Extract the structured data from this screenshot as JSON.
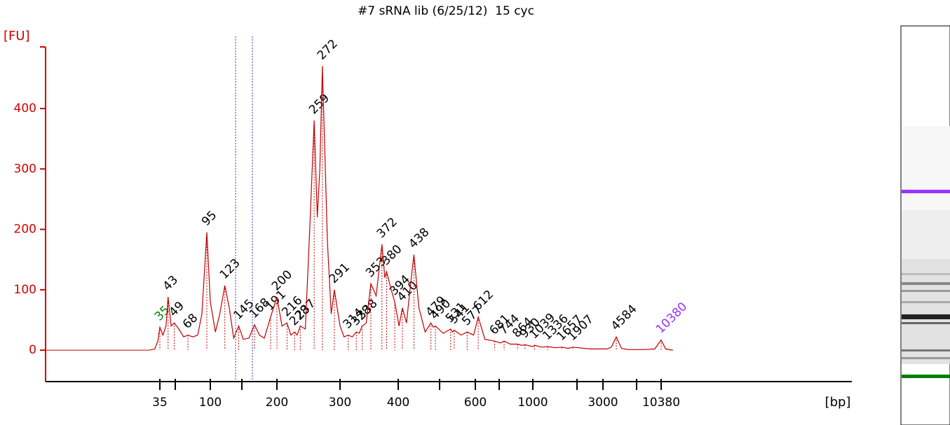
{
  "chart_data": {
    "type": "line",
    "title": "#7 sRNA lib (6/25/12)  15 cyc",
    "ylabel": "[FU]",
    "xlabel": "[bp]",
    "color": "#c00000",
    "axis_color": "#d00000",
    "ylim": [
      -52,
      502
    ],
    "yticks": [
      0,
      100,
      200,
      300,
      400
    ],
    "xticks": [
      35,
      100,
      200,
      300,
      400,
      600,
      1000,
      3000,
      10380
    ],
    "xticks_minor": [
      50,
      150,
      500,
      700,
      2000,
      7000
    ],
    "x": [
      25,
      30,
      33,
      35,
      38,
      41,
      43,
      46,
      49,
      55,
      62,
      68,
      75,
      82,
      88,
      95,
      100,
      108,
      115,
      123,
      130,
      137,
      145,
      152,
      160,
      168,
      175,
      182,
      191,
      200,
      208,
      216,
      222,
      228,
      232,
      237,
      245,
      252,
      259,
      264,
      268,
      272,
      280,
      286,
      291,
      300,
      307,
      314,
      321,
      328,
      333,
      338,
      345,
      353,
      362,
      372,
      377,
      380,
      388,
      394,
      402,
      410,
      420,
      430,
      438,
      450,
      465,
      479,
      485,
      490,
      510,
      531,
      536,
      541,
      560,
      577,
      595,
      612,
      640,
      681,
      710,
      744,
      800,
      864,
      900,
      930,
      1000,
      1039,
      1200,
      1336,
      1500,
      1657,
      1800,
      1907,
      2500,
      3500,
      4000,
      4584,
      5200,
      6000,
      8000,
      9500,
      10380,
      11000,
      12000
    ],
    "values": [
      0,
      2,
      15,
      38,
      25,
      40,
      88,
      40,
      45,
      35,
      22,
      25,
      22,
      25,
      60,
      195,
      80,
      30,
      60,
      107,
      70,
      20,
      40,
      18,
      20,
      42,
      25,
      20,
      55,
      88,
      40,
      45,
      25,
      30,
      25,
      40,
      35,
      200,
      380,
      220,
      300,
      470,
      180,
      60,
      100,
      40,
      22,
      25,
      22,
      30,
      28,
      40,
      45,
      110,
      90,
      175,
      120,
      130,
      100,
      80,
      40,
      70,
      45,
      110,
      158,
      70,
      30,
      45,
      38,
      40,
      28,
      35,
      30,
      33,
      25,
      30,
      25,
      55,
      18,
      15,
      12,
      15,
      10,
      10,
      8,
      9,
      6,
      8,
      5,
      6,
      4,
      5,
      3,
      5,
      2,
      2,
      5,
      22,
      3,
      1,
      1,
      2,
      17,
      2,
      0
    ],
    "peaks": {
      "x": [
        35,
        43,
        49,
        68,
        95,
        123,
        145,
        168,
        191,
        200,
        216,
        228,
        237,
        259,
        272,
        291,
        314,
        328,
        338,
        353,
        372,
        380,
        394,
        410,
        438,
        479,
        490,
        531,
        541,
        577,
        612,
        681,
        744,
        864,
        930,
        1039,
        1336,
        1657,
        1907,
        4584,
        10380
      ],
      "values": [
        38,
        88,
        45,
        25,
        195,
        107,
        40,
        42,
        55,
        88,
        45,
        30,
        40,
        380,
        470,
        100,
        25,
        30,
        40,
        110,
        175,
        130,
        80,
        70,
        158,
        45,
        40,
        35,
        33,
        30,
        55,
        15,
        15,
        10,
        9,
        8,
        6,
        5,
        5,
        22,
        17
      ],
      "colors": [
        "#008000",
        "#000000",
        "#000000",
        "#000000",
        "#000000",
        "#000000",
        "#000000",
        "#000000",
        "#000000",
        "#000000",
        "#000000",
        "#000000",
        "#000000",
        "#000000",
        "#000000",
        "#000000",
        "#000000",
        "#000000",
        "#000000",
        "#000000",
        "#000000",
        "#000000",
        "#000000",
        "#000000",
        "#000000",
        "#000000",
        "#000000",
        "#000000",
        "#000000",
        "#000000",
        "#000000",
        "#000000",
        "#000000",
        "#000000",
        "#000000",
        "#000000",
        "#000000",
        "#000000",
        "#000000",
        "#000000",
        "#9933ff"
      ]
    }
  }
}
